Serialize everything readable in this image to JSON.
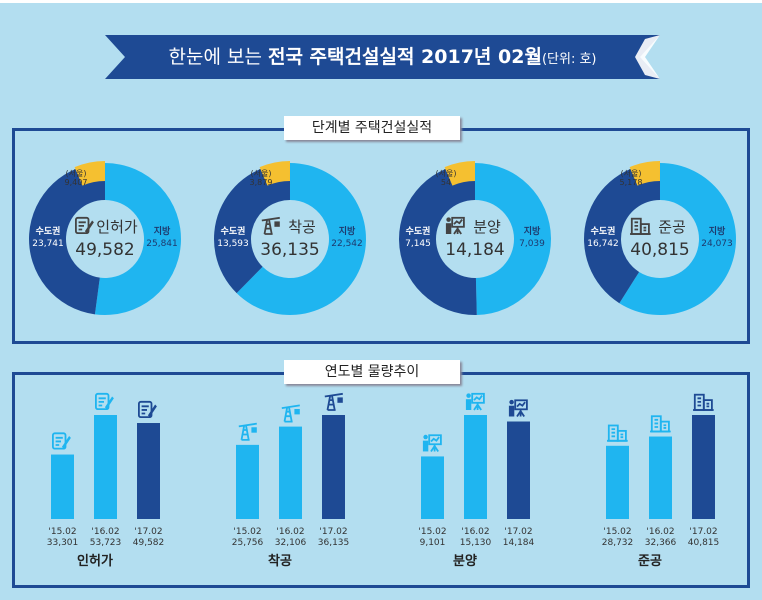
{
  "title": {
    "prefix": "한눈에 보는 ",
    "bold": "전국 주택건설실적 2017년 02월",
    "unit": "(단위: 호)"
  },
  "colors": {
    "banner": "#1e4a94",
    "local": "#1fb5f0",
    "capital": "#1e4a94",
    "seoul": "#f5c030",
    "prev_bar": "#1fb5f0",
    "current_bar": "#1e4a94"
  },
  "chart_data": [
    {
      "type": "pie",
      "title": "단계별 주택건설실적",
      "donuts": [
        {
          "stage": "인허가",
          "icon": "permit-document-icon",
          "total": "49,582",
          "capital_label": "수도권",
          "capital": 23741,
          "local_label": "지방",
          "local": 25841,
          "seoul_label": "(서울)",
          "seoul": 9407
        },
        {
          "stage": "착공",
          "icon": "crane-icon",
          "total": "36,135",
          "capital_label": "수도권",
          "capital": 13593,
          "local_label": "지방",
          "local": 22542,
          "seoul_label": "(서울)",
          "seoul": 3879
        },
        {
          "stage": "분양",
          "icon": "presentation-icon",
          "total": "14,184",
          "capital_label": "수도권",
          "capital": 7145,
          "local_label": "지방",
          "local": 7039,
          "seoul_label": "(서울)",
          "seoul": 54
        },
        {
          "stage": "준공",
          "icon": "buildings-icon",
          "total": "40,815",
          "capital_label": "수도권",
          "capital": 16742,
          "local_label": "지방",
          "local": 24073,
          "seoul_label": "(서울)",
          "seoul": 5178
        }
      ]
    },
    {
      "type": "bar",
      "title": "연도별 물량추이",
      "groups": [
        {
          "name": "인허가",
          "icon": "permit-document-icon",
          "categories": [
            "'15.02",
            "'16.02",
            "'17.02"
          ],
          "values": [
            33301,
            53723,
            49582
          ]
        },
        {
          "name": "착공",
          "icon": "crane-icon",
          "categories": [
            "'15.02",
            "'16.02",
            "'17.02"
          ],
          "values": [
            25756,
            32106,
            36135
          ]
        },
        {
          "name": "분양",
          "icon": "presentation-icon",
          "categories": [
            "'15.02",
            "'16.02",
            "'17.02"
          ],
          "values": [
            9101,
            15130,
            14184
          ]
        },
        {
          "name": "준공",
          "icon": "buildings-icon",
          "categories": [
            "'15.02",
            "'16.02",
            "'17.02"
          ],
          "values": [
            28732,
            32366,
            40815
          ]
        }
      ]
    }
  ]
}
